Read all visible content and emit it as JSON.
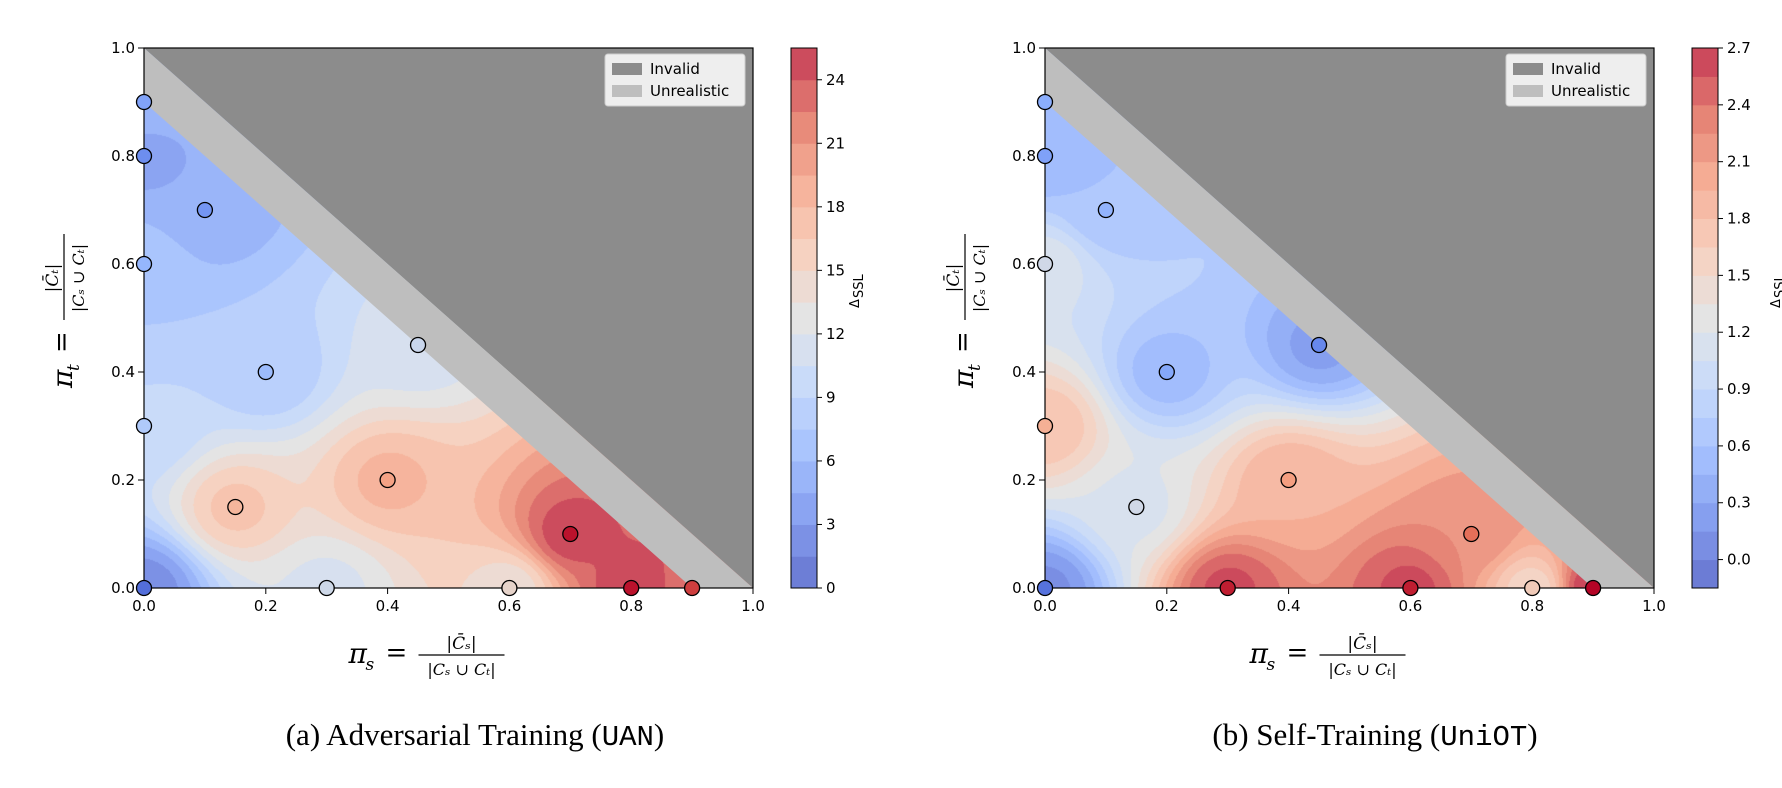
{
  "colors": {
    "invalid": "#8c8c8c",
    "unrealistic": "#bebebe",
    "colormap": "coolwarm"
  },
  "chart_data": [
    {
      "type": "contour",
      "caption": {
        "prefix": "(a) Adversarial Training (",
        "code": "UAN",
        "suffix": ")"
      },
      "xlabel": "π_s = |C̄_s| / |C_s ∪ C_t|",
      "ylabel": "π_t = |C̄_t| / |C_s ∪ C_t|",
      "xlim": [
        0.0,
        1.0
      ],
      "ylim": [
        0.0,
        1.0
      ],
      "xticks": [
        "0.0",
        "0.2",
        "0.4",
        "0.6",
        "0.8",
        "1.0"
      ],
      "yticks": [
        "0.0",
        "0.2",
        "0.4",
        "0.6",
        "0.8",
        "1.0"
      ],
      "legend": {
        "position": "top-right",
        "entries": [
          "Invalid",
          "Unrealistic"
        ]
      },
      "colorbar": {
        "label": "Δ_SSL",
        "range": [
          0,
          25.5
        ],
        "ticks": [
          "0",
          "3",
          "6",
          "9",
          "12",
          "15",
          "18",
          "21",
          "24"
        ],
        "tick_values": [
          0,
          3,
          6,
          9,
          12,
          15,
          18,
          21,
          24
        ],
        "levels": 17
      },
      "points": [
        {
          "x": 0.0,
          "y": 0.9,
          "v": 5.5
        },
        {
          "x": 0.0,
          "y": 0.8,
          "v": 4.0
        },
        {
          "x": 0.1,
          "y": 0.7,
          "v": 4.5
        },
        {
          "x": 0.0,
          "y": 0.6,
          "v": 7.0
        },
        {
          "x": 0.45,
          "y": 0.45,
          "v": 11.0
        },
        {
          "x": 0.2,
          "y": 0.4,
          "v": 7.5
        },
        {
          "x": 0.0,
          "y": 0.3,
          "v": 9.0
        },
        {
          "x": 0.4,
          "y": 0.2,
          "v": 18.5
        },
        {
          "x": 0.15,
          "y": 0.15,
          "v": 17.0
        },
        {
          "x": 0.7,
          "y": 0.1,
          "v": 25.0
        },
        {
          "x": 0.0,
          "y": 0.0,
          "v": 2.0
        },
        {
          "x": 0.3,
          "y": 0.0,
          "v": 11.5
        },
        {
          "x": 0.6,
          "y": 0.0,
          "v": 14.0
        },
        {
          "x": 0.8,
          "y": 0.0,
          "v": 25.0
        },
        {
          "x": 0.9,
          "y": 0.0,
          "v": 23.5
        }
      ]
    },
    {
      "type": "contour",
      "caption": {
        "prefix": "(b) Self-Training (",
        "code": "UniOT",
        "suffix": ")"
      },
      "xlabel": "π_s = |C̄_s| / |C_s ∪ C_t|",
      "ylabel": "π_t = |C̄_t| / |C_s ∪ C_t|",
      "xlim": [
        0.0,
        1.0
      ],
      "ylim": [
        0.0,
        1.0
      ],
      "xticks": [
        "0.0",
        "0.2",
        "0.4",
        "0.6",
        "0.8",
        "1.0"
      ],
      "yticks": [
        "0.0",
        "0.2",
        "0.4",
        "0.6",
        "0.8",
        "1.0"
      ],
      "legend": {
        "position": "top-right",
        "entries": [
          "Invalid",
          "Unrealistic"
        ]
      },
      "colorbar": {
        "label": "Δ_SSL",
        "range": [
          -0.15,
          2.7
        ],
        "ticks": [
          "0.0",
          "0.3",
          "0.6",
          "0.9",
          "1.2",
          "1.5",
          "1.8",
          "2.1",
          "2.4",
          "2.7"
        ],
        "tick_values": [
          0.0,
          0.3,
          0.6,
          0.9,
          1.2,
          1.5,
          1.8,
          2.1,
          2.4,
          2.7
        ],
        "levels": 19
      },
      "points": [
        {
          "x": 0.0,
          "y": 0.9,
          "v": 0.55
        },
        {
          "x": 0.0,
          "y": 0.8,
          "v": 0.45
        },
        {
          "x": 0.1,
          "y": 0.7,
          "v": 0.6
        },
        {
          "x": 0.0,
          "y": 0.6,
          "v": 1.15
        },
        {
          "x": 0.45,
          "y": 0.45,
          "v": 0.25
        },
        {
          "x": 0.2,
          "y": 0.4,
          "v": 0.5
        },
        {
          "x": 0.0,
          "y": 0.3,
          "v": 1.8
        },
        {
          "x": 0.4,
          "y": 0.2,
          "v": 1.95
        },
        {
          "x": 0.15,
          "y": 0.15,
          "v": 1.15
        },
        {
          "x": 0.7,
          "y": 0.1,
          "v": 2.25
        },
        {
          "x": 0.0,
          "y": 0.0,
          "v": 0.1
        },
        {
          "x": 0.3,
          "y": 0.0,
          "v": 2.6
        },
        {
          "x": 0.6,
          "y": 0.0,
          "v": 2.6
        },
        {
          "x": 0.8,
          "y": 0.0,
          "v": 1.55
        },
        {
          "x": 0.9,
          "y": 0.0,
          "v": 2.7
        }
      ]
    }
  ]
}
